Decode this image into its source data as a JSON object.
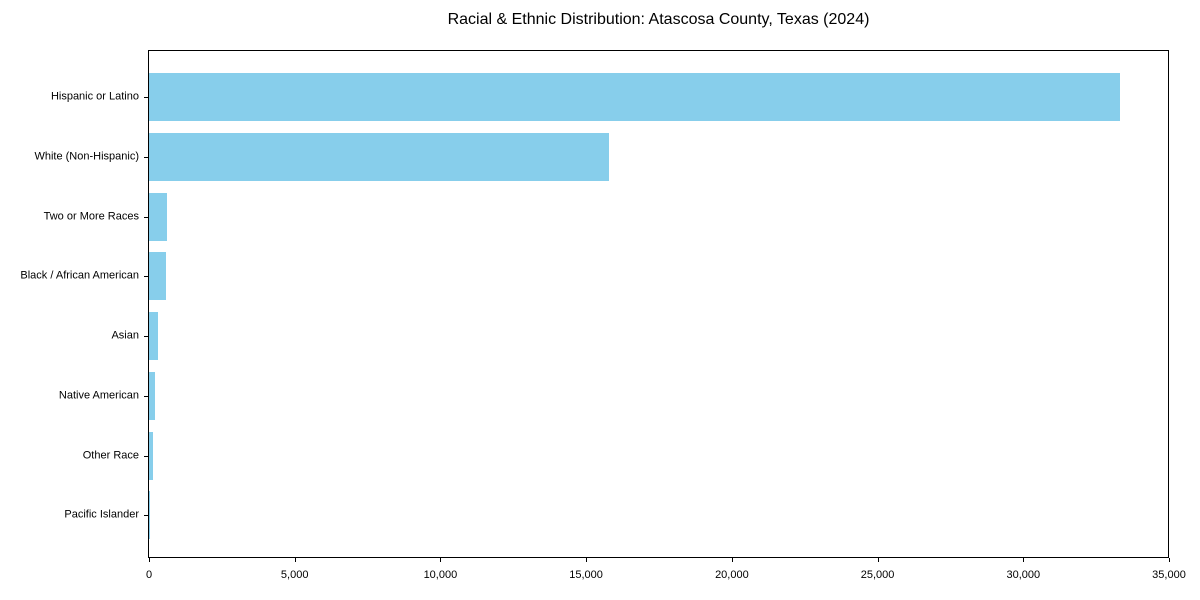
{
  "page": {
    "background_color": "#ffffff",
    "text_color": "#000000"
  },
  "chart_data": {
    "type": "bar",
    "orientation": "horizontal",
    "title": "Racial & Ethnic Distribution: Atascosa County, Texas (2024)",
    "categories": [
      "Hispanic or Latino",
      "White (Non-Hispanic)",
      "Two or More Races",
      "Black / African American",
      "Asian",
      "Native American",
      "Other Race",
      "Pacific Islander"
    ],
    "values": [
      33320,
      15770,
      620,
      580,
      310,
      205,
      140,
      15
    ],
    "xlabel": "",
    "ylabel": "",
    "xlim": [
      0,
      35000
    ],
    "xticks": [
      0,
      5000,
      10000,
      15000,
      20000,
      25000,
      30000,
      35000
    ],
    "xtick_labels": [
      "0",
      "5,000",
      "10,000",
      "15,000",
      "20,000",
      "25,000",
      "30,000",
      "35,000"
    ],
    "grid": false,
    "legend": false,
    "bar_color": "#87CEEB",
    "axis_color": "#000000",
    "plot_background": "#ffffff"
  }
}
